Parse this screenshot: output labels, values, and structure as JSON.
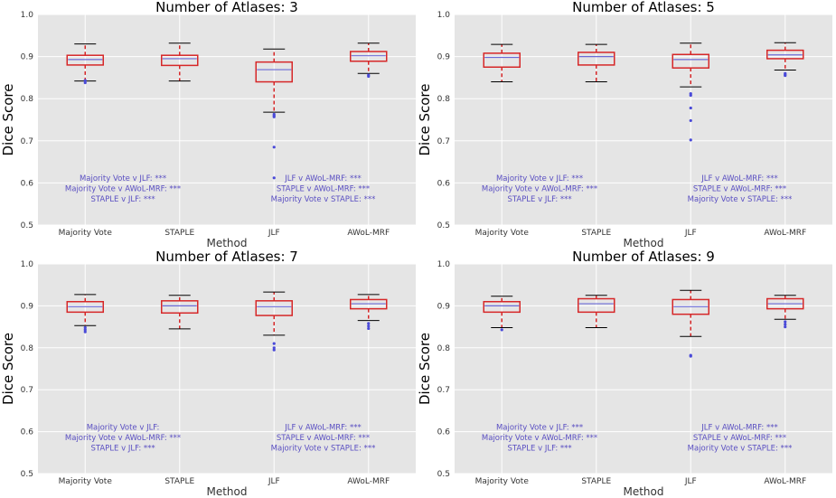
{
  "figure": {
    "type": "boxplot-grid",
    "ylabel": "Dice Score",
    "xlabel": "Method",
    "categories": [
      "Majority Vote",
      "STAPLE",
      "JLF",
      "AWoL-MRF"
    ],
    "colors": {
      "background": "#e5e5e5",
      "grid": "#ffffff",
      "box": "#d62728",
      "median": "#6b6bd6",
      "whisker": "#d62728",
      "cap": "#000000",
      "flier": "#4a4ad8",
      "annotation": "#5a4fc2"
    }
  },
  "chart_data": [
    {
      "type": "box",
      "title": "Number of Atlases: 3",
      "xlabel": "Method",
      "ylabel": "Dice Score",
      "ylim": [
        0.5,
        1.0
      ],
      "yticks": [
        "0.5",
        "0.6",
        "0.7",
        "0.8",
        "0.9",
        "1.0"
      ],
      "categories": [
        "Majority Vote",
        "STAPLE",
        "JLF",
        "AWoL-MRF"
      ],
      "boxes": [
        {
          "whislo": 0.842,
          "q1": 0.88,
          "med": 0.893,
          "q3": 0.903,
          "whishi": 0.93,
          "fliers": [
            0.838,
            0.843
          ]
        },
        {
          "whislo": 0.842,
          "q1": 0.879,
          "med": 0.895,
          "q3": 0.903,
          "whishi": 0.932,
          "fliers": []
        },
        {
          "whislo": 0.768,
          "q1": 0.84,
          "med": 0.869,
          "q3": 0.887,
          "whishi": 0.918,
          "fliers": [
            0.763,
            0.76,
            0.757,
            0.685,
            0.612
          ]
        },
        {
          "whislo": 0.86,
          "q1": 0.889,
          "med": 0.902,
          "q3": 0.912,
          "whishi": 0.932,
          "fliers": [
            0.856,
            0.853
          ]
        }
      ],
      "annotations_left": [
        "Majority Vote v JLF: ***",
        "Majority Vote v AWoL-MRF: ***",
        "STAPLE v JLF: ***"
      ],
      "annotations_right": [
        "JLF v AWoL-MRF: ***",
        "STAPLE v AWoL-MRF: ***",
        "Majority Vote v STAPLE: ***"
      ]
    },
    {
      "type": "box",
      "title": "Number of Atlases: 5",
      "xlabel": "Method",
      "ylabel": "Dice Score",
      "ylim": [
        0.5,
        1.0
      ],
      "yticks": [
        "0.5",
        "0.6",
        "0.7",
        "0.8",
        "0.9",
        "1.0"
      ],
      "categories": [
        "Majority Vote",
        "STAPLE",
        "JLF",
        "AWoL-MRF"
      ],
      "boxes": [
        {
          "whislo": 0.84,
          "q1": 0.875,
          "med": 0.898,
          "q3": 0.908,
          "whishi": 0.929,
          "fliers": []
        },
        {
          "whislo": 0.84,
          "q1": 0.88,
          "med": 0.9,
          "q3": 0.91,
          "whishi": 0.929,
          "fliers": []
        },
        {
          "whislo": 0.828,
          "q1": 0.873,
          "med": 0.893,
          "q3": 0.905,
          "whishi": 0.932,
          "fliers": [
            0.812,
            0.808,
            0.778,
            0.748,
            0.702
          ]
        },
        {
          "whislo": 0.868,
          "q1": 0.895,
          "med": 0.904,
          "q3": 0.915,
          "whishi": 0.933,
          "fliers": [
            0.86,
            0.857,
            0.855
          ]
        }
      ],
      "annotations_left": [
        "Majority Vote v JLF: ***",
        "Majority Vote v AWoL-MRF: ***",
        "STAPLE v JLF: ***"
      ],
      "annotations_right": [
        "JLF v AWoL-MRF: ***",
        "STAPLE v AWoL-MRF: ***",
        "Majority Vote v STAPLE: ***"
      ]
    },
    {
      "type": "box",
      "title": "Number of Atlases: 7",
      "xlabel": "Method",
      "ylabel": "Dice Score",
      "ylim": [
        0.5,
        1.0
      ],
      "yticks": [
        "0.5",
        "0.6",
        "0.7",
        "0.8",
        "0.9",
        "1.0"
      ],
      "categories": [
        "Majority Vote",
        "STAPLE",
        "JLF",
        "AWoL-MRF"
      ],
      "boxes": [
        {
          "whislo": 0.853,
          "q1": 0.885,
          "med": 0.898,
          "q3": 0.91,
          "whishi": 0.927,
          "fliers": [
            0.848,
            0.843,
            0.838
          ]
        },
        {
          "whislo": 0.845,
          "q1": 0.883,
          "med": 0.9,
          "q3": 0.912,
          "whishi": 0.925,
          "fliers": []
        },
        {
          "whislo": 0.83,
          "q1": 0.877,
          "med": 0.898,
          "q3": 0.912,
          "whishi": 0.933,
          "fliers": [
            0.81,
            0.8,
            0.795
          ]
        },
        {
          "whislo": 0.865,
          "q1": 0.893,
          "med": 0.905,
          "q3": 0.915,
          "whishi": 0.927,
          "fliers": [
            0.858,
            0.852,
            0.846
          ]
        }
      ],
      "annotations_left": [
        "Majority Vote v JLF:",
        "Majority Vote v AWoL-MRF: ***",
        "STAPLE v JLF: ***"
      ],
      "annotations_right": [
        "JLF v AWoL-MRF: ***",
        "STAPLE v AWoL-MRF: ***",
        "Majority Vote v STAPLE: ***"
      ]
    },
    {
      "type": "box",
      "title": "Number of Atlases: 9",
      "xlabel": "Method",
      "ylabel": "Dice Score",
      "ylim": [
        0.5,
        1.0
      ],
      "yticks": [
        "0.5",
        "0.6",
        "0.7",
        "0.8",
        "0.9",
        "1.0"
      ],
      "categories": [
        "Majority Vote",
        "STAPLE",
        "JLF",
        "AWoL-MRF"
      ],
      "boxes": [
        {
          "whislo": 0.848,
          "q1": 0.885,
          "med": 0.9,
          "q3": 0.91,
          "whishi": 0.923,
          "fliers": [
            0.843
          ]
        },
        {
          "whislo": 0.848,
          "q1": 0.885,
          "med": 0.905,
          "q3": 0.917,
          "whishi": 0.925,
          "fliers": []
        },
        {
          "whislo": 0.827,
          "q1": 0.88,
          "med": 0.898,
          "q3": 0.915,
          "whishi": 0.937,
          "fliers": [
            0.782,
            0.78
          ]
        },
        {
          "whislo": 0.868,
          "q1": 0.893,
          "med": 0.905,
          "q3": 0.917,
          "whishi": 0.925,
          "fliers": [
            0.862,
            0.856,
            0.85
          ]
        }
      ],
      "annotations_left": [
        "Majority Vote v JLF: ***",
        "Majority Vote v AWoL-MRF: ***",
        "STAPLE v JLF: ***"
      ],
      "annotations_right": [
        "JLF v AWoL-MRF: ***",
        "STAPLE v AWoL-MRF: ***",
        "Majority Vote v STAPLE: ***"
      ]
    }
  ]
}
